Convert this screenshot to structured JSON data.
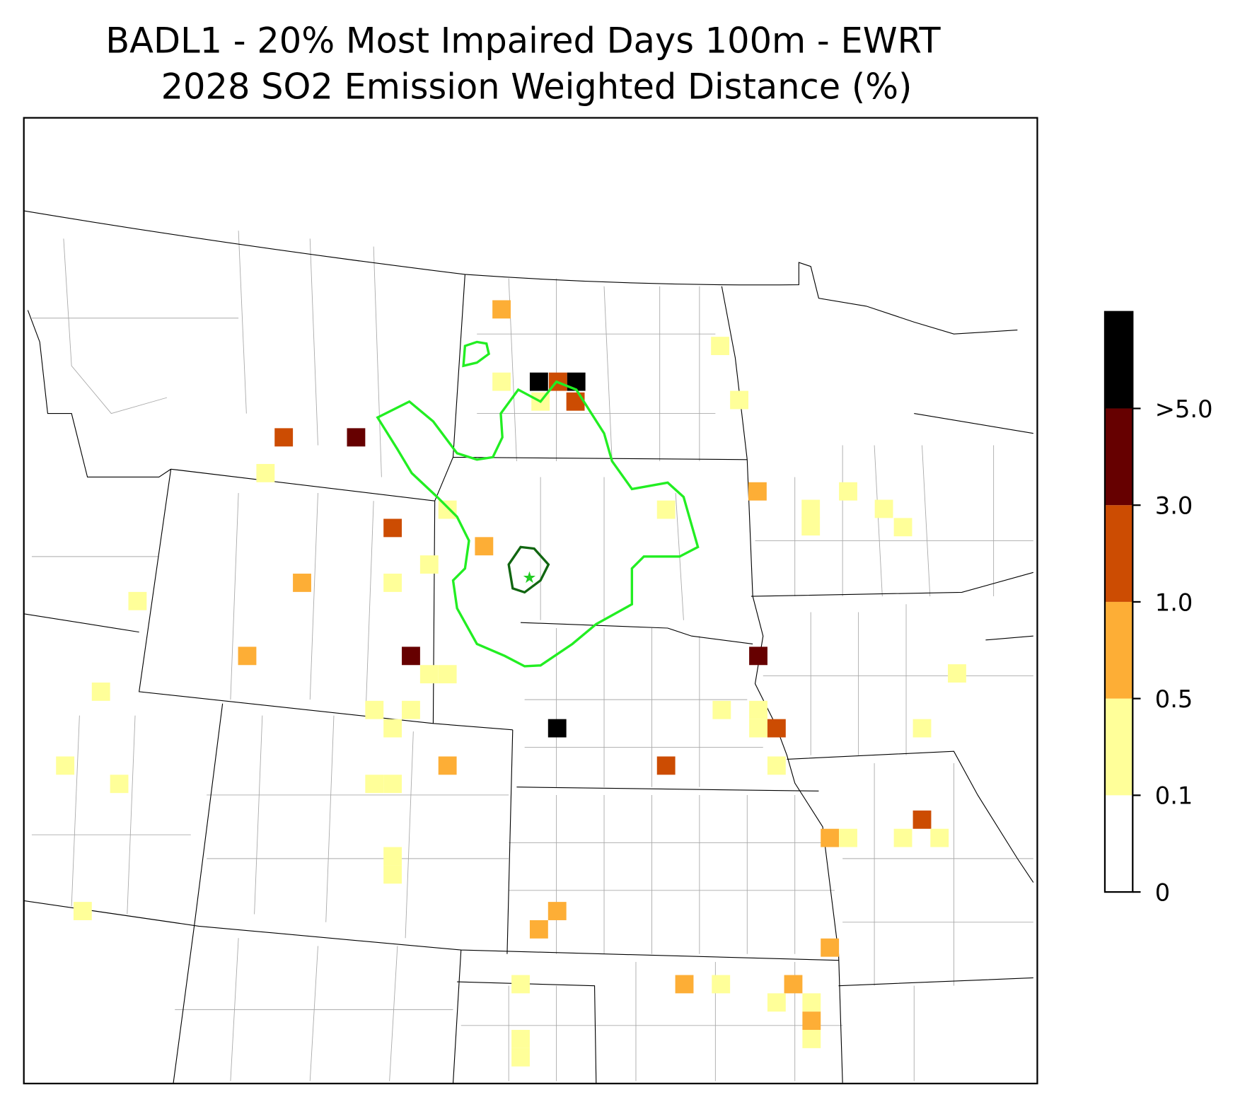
{
  "title": "BADL1 - 20% Most Impaired Days 100m - EWRT",
  "subtitle": "2028 SO2 Emission Weighted Distance (%)",
  "colorbar": {
    "colors": [
      "#ffffff",
      "#ffff99",
      "#fdae36",
      "#cc4c02",
      "#660000",
      "#000000"
    ],
    "ticks": [
      0,
      0.1,
      0.5,
      {
        "value": 1,
        "label": "1.0"
      },
      {
        "value": 3,
        "label": "3.0"
      },
      {
        "value": 5,
        "label": ">5.0"
      }
    ]
  }
}
